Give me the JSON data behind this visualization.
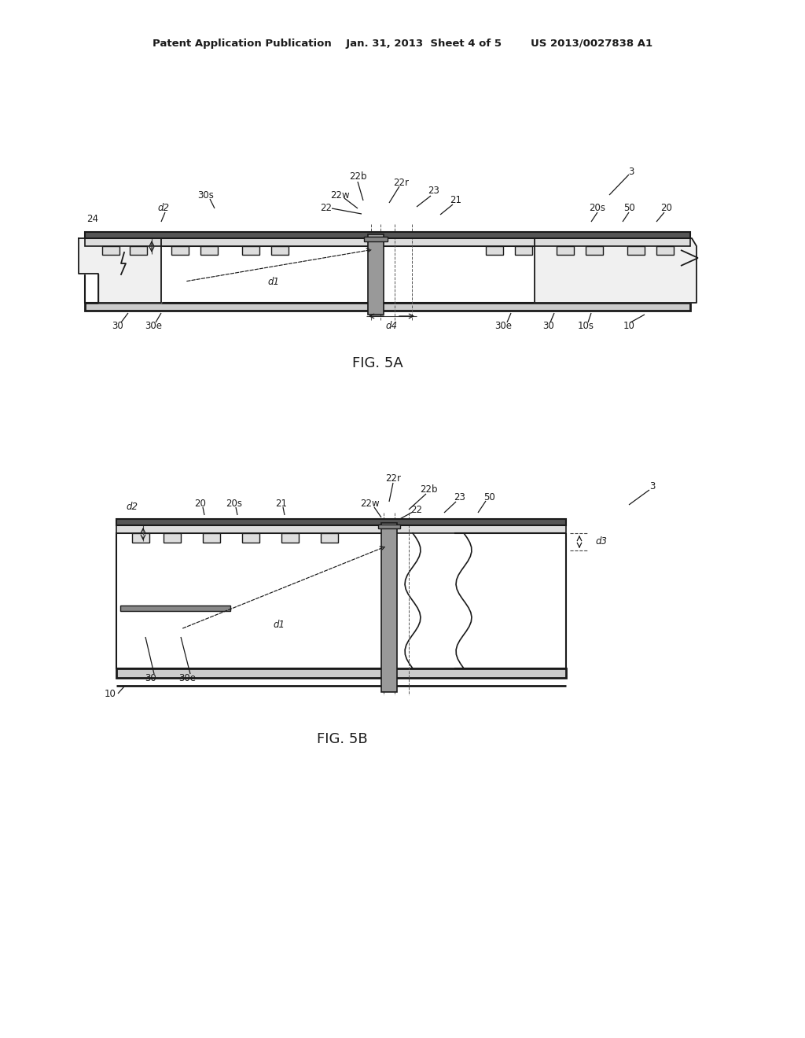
{
  "bg_color": "#ffffff",
  "line_color": "#1a1a1a",
  "header": "Patent Application Publication    Jan. 31, 2013  Sheet 4 of 5        US 2013/0027838 A1",
  "fig5a_title": "FIG. 5A",
  "fig5b_title": "FIG. 5B"
}
